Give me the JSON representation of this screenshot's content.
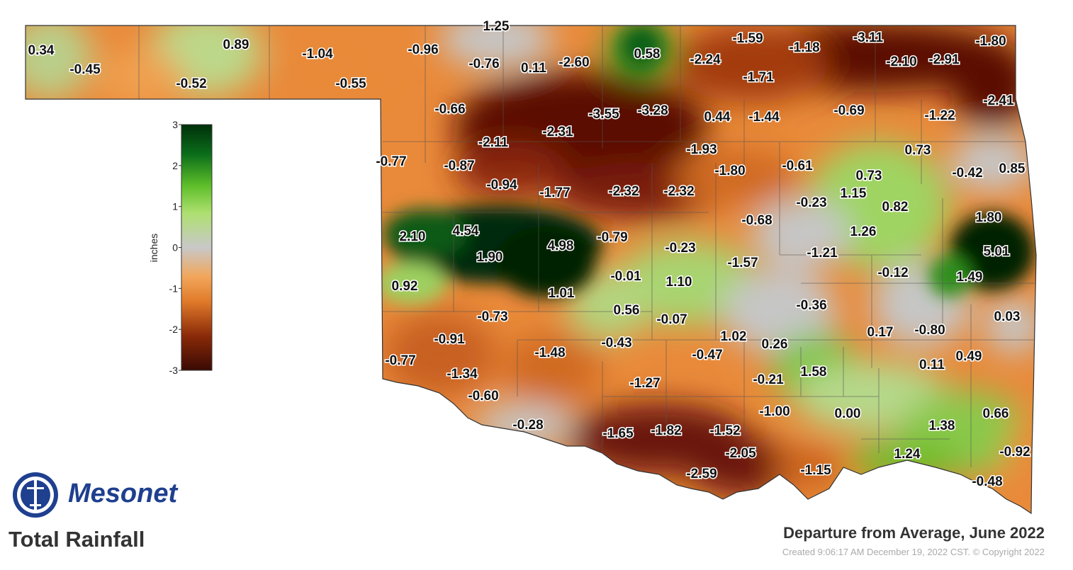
{
  "map": {
    "product": "Total Rainfall",
    "subtitle": "Departure from Average, June 2022",
    "created": "Created 9:06:17 AM December 19, 2022 CST. © Copyright 2022",
    "brand": "Mesonet",
    "legend": {
      "unit": "inches",
      "ticks": [
        "3",
        "2",
        "1",
        "0",
        "-1",
        "-2",
        "-3"
      ],
      "colors": [
        "#3a0a04",
        "#8a2a08",
        "#e07a2a",
        "#f2a65a",
        "#c8c8c8",
        "#aee070",
        "#5fbf2a",
        "#0b6d1a",
        "#00300a"
      ]
    },
    "colors": {
      "very_dry": "#5a0d06",
      "dry": "#e98a3a",
      "neutral": "#c6c6c6",
      "wet": "#86c84a",
      "very_wet": "#0a4a12",
      "boundary": "#555555"
    },
    "stations": [
      {
        "value": "0.34"
      },
      {
        "value": "-0.45"
      },
      {
        "value": "0.89"
      },
      {
        "value": "-0.52"
      },
      {
        "value": "-1.04"
      },
      {
        "value": "-0.55"
      },
      {
        "value": "-0.96"
      },
      {
        "value": "1.25"
      },
      {
        "value": "-0.76"
      },
      {
        "value": "0.11"
      },
      {
        "value": "-2.60"
      },
      {
        "value": "0.58"
      },
      {
        "value": "-2.24"
      },
      {
        "value": "-1.59"
      },
      {
        "value": "-1.18"
      },
      {
        "value": "-3.11"
      },
      {
        "value": "-2.10"
      },
      {
        "value": "-2.91"
      },
      {
        "value": "-1.80"
      },
      {
        "value": "-1.71"
      },
      {
        "value": "-0.66"
      },
      {
        "value": "-3.55"
      },
      {
        "value": "-3.28"
      },
      {
        "value": "0.44"
      },
      {
        "value": "-1.44"
      },
      {
        "value": "-0.69"
      },
      {
        "value": "-1.22"
      },
      {
        "value": "-2.41"
      },
      {
        "value": "-2.11"
      },
      {
        "value": "-2.31"
      },
      {
        "value": "-1.93"
      },
      {
        "value": "0.73"
      },
      {
        "value": "-0.77"
      },
      {
        "value": "-0.87"
      },
      {
        "value": "-1.80"
      },
      {
        "value": "-0.61"
      },
      {
        "value": "0.73"
      },
      {
        "value": "-0.42"
      },
      {
        "value": "0.85"
      },
      {
        "value": "-0.94"
      },
      {
        "value": "-1.77"
      },
      {
        "value": "-2.32"
      },
      {
        "value": "-2.32"
      },
      {
        "value": "-0.23"
      },
      {
        "value": "1.15"
      },
      {
        "value": "0.82"
      },
      {
        "value": "-0.68"
      },
      {
        "value": "1.80"
      },
      {
        "value": "2.10"
      },
      {
        "value": "4.54"
      },
      {
        "value": "1.26"
      },
      {
        "value": "4.98"
      },
      {
        "value": "-0.79"
      },
      {
        "value": "1.90"
      },
      {
        "value": "-0.23"
      },
      {
        "value": "-1.21"
      },
      {
        "value": "5.01"
      },
      {
        "value": "-1.57"
      },
      {
        "value": "-0.12"
      },
      {
        "value": "1.49"
      },
      {
        "value": "0.92"
      },
      {
        "value": "-0.01"
      },
      {
        "value": "1.10"
      },
      {
        "value": "1.01"
      },
      {
        "value": "-0.36"
      },
      {
        "value": "0.56"
      },
      {
        "value": "-0.73"
      },
      {
        "value": "-0.07"
      },
      {
        "value": "0.03"
      },
      {
        "value": "0.17"
      },
      {
        "value": "-0.80"
      },
      {
        "value": "1.02"
      },
      {
        "value": "-0.91"
      },
      {
        "value": "-0.43"
      },
      {
        "value": "0.26"
      },
      {
        "value": "-1.48"
      },
      {
        "value": "-0.47"
      },
      {
        "value": "0.49"
      },
      {
        "value": "-0.77"
      },
      {
        "value": "0.11"
      },
      {
        "value": "-1.34"
      },
      {
        "value": "1.58"
      },
      {
        "value": "-0.21"
      },
      {
        "value": "-1.27"
      },
      {
        "value": "-0.60"
      },
      {
        "value": "-1.00"
      },
      {
        "value": "0.00"
      },
      {
        "value": "0.66"
      },
      {
        "value": "-0.28"
      },
      {
        "value": "1.38"
      },
      {
        "value": "-1.65"
      },
      {
        "value": "-1.82"
      },
      {
        "value": "-1.52"
      },
      {
        "value": "-0.92"
      },
      {
        "value": "-2.05"
      },
      {
        "value": "1.24"
      },
      {
        "value": "-2.59"
      },
      {
        "value": "-1.15"
      },
      {
        "value": "-0.48"
      }
    ]
  }
}
